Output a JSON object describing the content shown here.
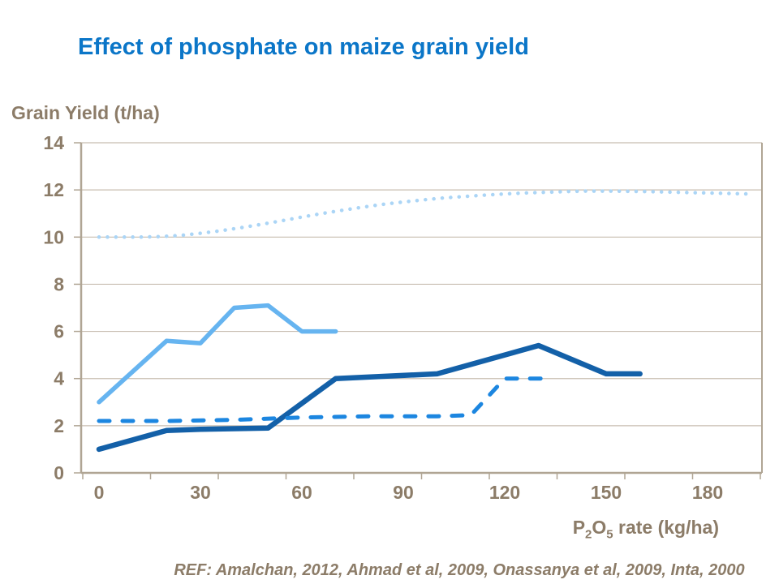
{
  "header": {
    "title": "Effect of phosphate on maize grain yield"
  },
  "y_axis": {
    "label": "Grain Yield (t/ha)"
  },
  "x_axis": {
    "title_parts": {
      "p": "P",
      "sub_2": "2",
      "o": "O",
      "sub_5": "5",
      "rest": " rate (kg/ha)"
    }
  },
  "footer": {
    "ref_label": "REF:",
    "ref_text": " Amalchan, 2012, Ahmad et al, 2009, Onassanya et al, 2009, Inta, 2000"
  },
  "colors": {
    "title_blue": "#0B76C8",
    "axis_text": "#8C7C68",
    "gridline": "#C8BEB1",
    "axis_line": "#B0A594",
    "dotted_pale_blue": "#ABD5F6",
    "solid_light_blue": "#66B4F0",
    "solid_dark_blue": "#1360A8",
    "dashed_blue": "#1C86E0",
    "background": "#FFFFFF"
  },
  "chart_data": {
    "type": "line",
    "title": "Effect of phosphate on maize grain yield",
    "xlabel": "P2O5 rate (kg/ha)",
    "ylabel": "Grain Yield (t/ha)",
    "xlim": [
      -5,
      196
    ],
    "ylim": [
      0,
      14
    ],
    "x_ticks": [
      0,
      30,
      60,
      90,
      120,
      150,
      180
    ],
    "y_ticks": [
      0,
      2,
      4,
      6,
      8,
      10,
      12,
      14
    ],
    "grid": true,
    "legend": "none",
    "series": [
      {
        "name": "dotted-pale-blue-curve",
        "style": "dotted",
        "color": "#ABD5F6",
        "width": 4.5,
        "points": [
          [
            0,
            10
          ],
          [
            6,
            10
          ],
          [
            12,
            10
          ],
          [
            18,
            10.02
          ],
          [
            24,
            10.07
          ],
          [
            30,
            10.16
          ],
          [
            36,
            10.27
          ],
          [
            42,
            10.4
          ],
          [
            48,
            10.54
          ],
          [
            54,
            10.69
          ],
          [
            60,
            10.85
          ],
          [
            66,
            11.0
          ],
          [
            72,
            11.14
          ],
          [
            78,
            11.27
          ],
          [
            84,
            11.39
          ],
          [
            90,
            11.49
          ],
          [
            96,
            11.58
          ],
          [
            102,
            11.66
          ],
          [
            108,
            11.72
          ],
          [
            114,
            11.78
          ],
          [
            120,
            11.83
          ],
          [
            126,
            11.87
          ],
          [
            132,
            11.9
          ],
          [
            138,
            11.93
          ],
          [
            144,
            11.95
          ],
          [
            150,
            11.95
          ],
          [
            156,
            11.94
          ],
          [
            162,
            11.93
          ],
          [
            168,
            11.91
          ],
          [
            174,
            11.89
          ],
          [
            180,
            11.87
          ],
          [
            186,
            11.85
          ],
          [
            192,
            11.83
          ]
        ]
      },
      {
        "name": "solid-light-blue-line",
        "style": "solid",
        "color": "#66B4F0",
        "width": 5.5,
        "points": [
          [
            0,
            3
          ],
          [
            20,
            5.6
          ],
          [
            30,
            5.5
          ],
          [
            40,
            7.0
          ],
          [
            50,
            7.1
          ],
          [
            60,
            6.0
          ],
          [
            70,
            6.0
          ]
        ]
      },
      {
        "name": "solid-dark-blue-line",
        "style": "solid",
        "color": "#1360A8",
        "width": 6.5,
        "points": [
          [
            0,
            1.0
          ],
          [
            20,
            1.8
          ],
          [
            30,
            1.85
          ],
          [
            50,
            1.9
          ],
          [
            70,
            4.0
          ],
          [
            100,
            4.2
          ],
          [
            130,
            5.4
          ],
          [
            150,
            4.2
          ],
          [
            160,
            4.2
          ]
        ]
      },
      {
        "name": "dashed-blue-line",
        "style": "dashed",
        "color": "#1C86E0",
        "width": 5,
        "points": [
          [
            0,
            2.2
          ],
          [
            20,
            2.2
          ],
          [
            40,
            2.25
          ],
          [
            60,
            2.35
          ],
          [
            80,
            2.4
          ],
          [
            100,
            2.4
          ],
          [
            110,
            2.45
          ],
          [
            120,
            4.0
          ],
          [
            131,
            4.0
          ]
        ]
      }
    ]
  }
}
